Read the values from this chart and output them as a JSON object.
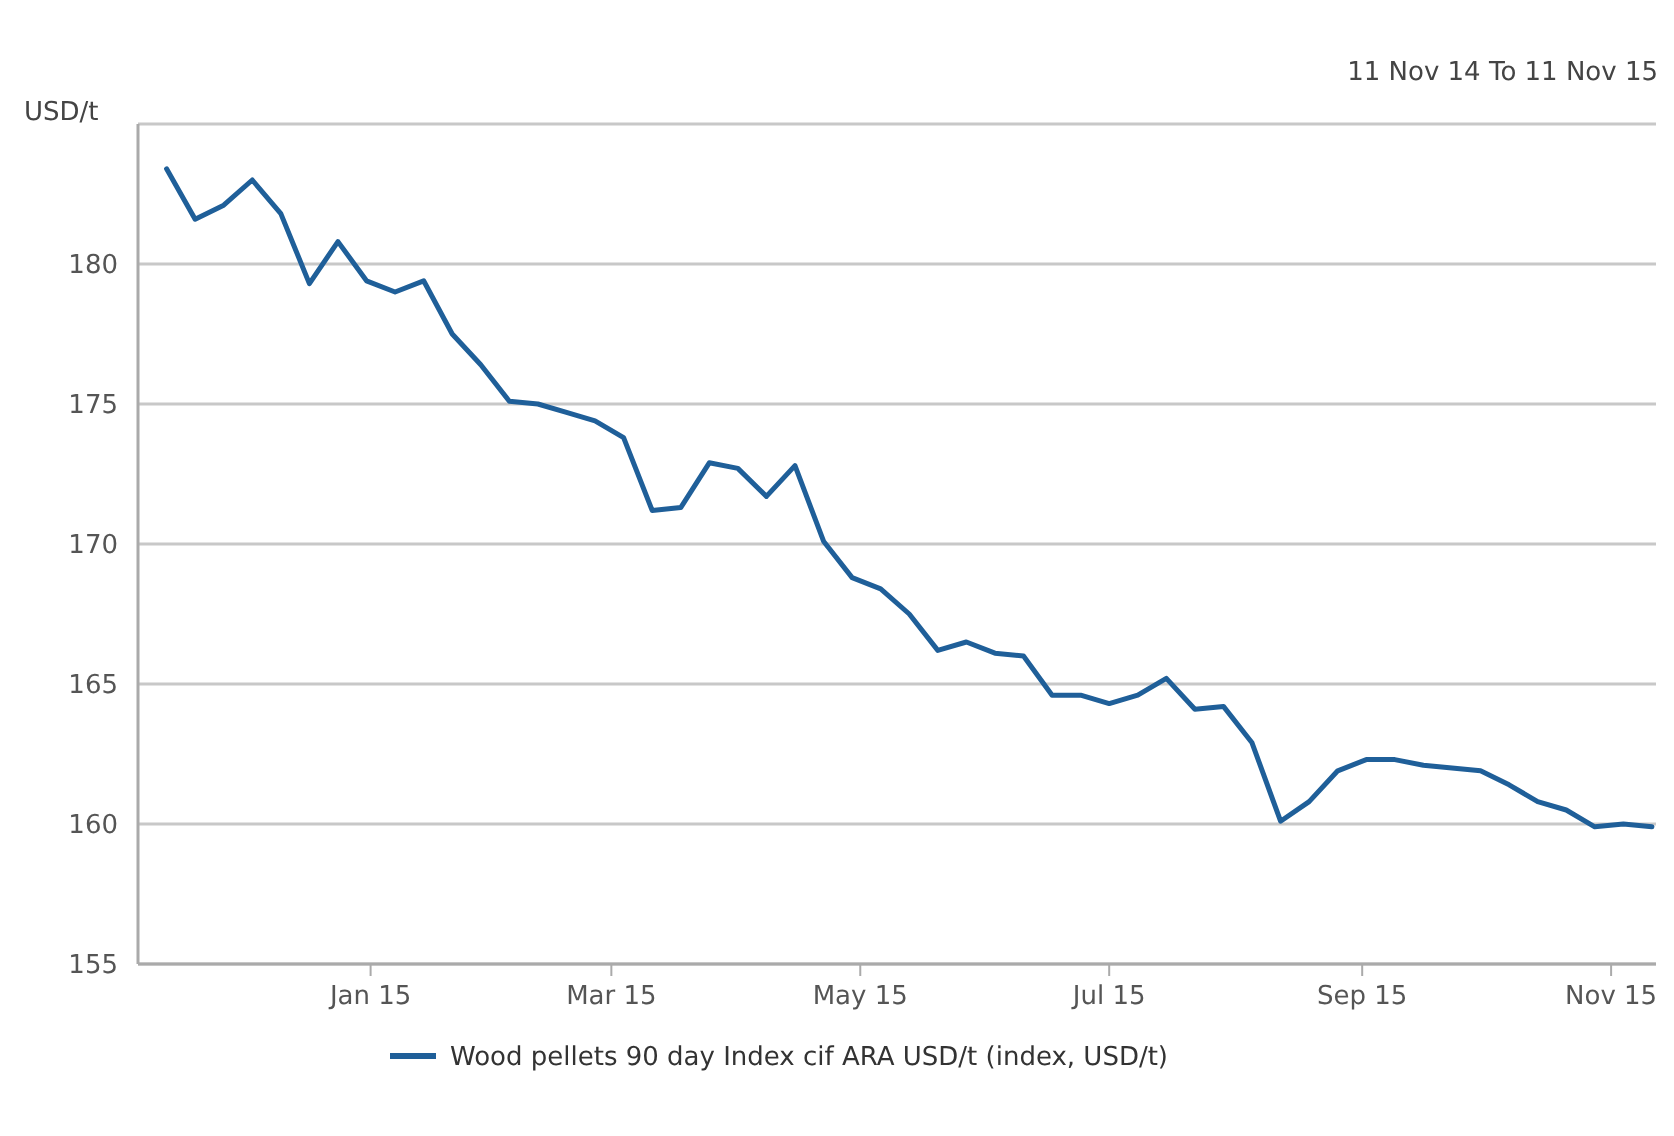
{
  "chart_data": {
    "type": "line",
    "subtitle": "11 Nov 14 To 11 Nov 15",
    "ylabel": "USD/t",
    "x": [
      "2014-11-12",
      "2014-11-19",
      "2014-11-26",
      "2014-12-03",
      "2014-12-10",
      "2014-12-17",
      "2014-12-24",
      "2014-12-31",
      "2015-01-07",
      "2015-01-14",
      "2015-01-21",
      "2015-01-28",
      "2015-02-04",
      "2015-02-11",
      "2015-02-18",
      "2015-02-25",
      "2015-03-04",
      "2015-03-11",
      "2015-03-18",
      "2015-03-25",
      "2015-04-01",
      "2015-04-08",
      "2015-04-15",
      "2015-04-22",
      "2015-04-29",
      "2015-05-06",
      "2015-05-13",
      "2015-05-20",
      "2015-05-27",
      "2015-06-03",
      "2015-06-10",
      "2015-06-17",
      "2015-06-24",
      "2015-07-01",
      "2015-07-08",
      "2015-07-15",
      "2015-07-22",
      "2015-07-29",
      "2015-08-05",
      "2015-08-12",
      "2015-08-19",
      "2015-08-26",
      "2015-09-02",
      "2015-09-09",
      "2015-09-16",
      "2015-09-23",
      "2015-09-30",
      "2015-10-07",
      "2015-10-14",
      "2015-10-21",
      "2015-10-28",
      "2015-11-04",
      "2015-11-11"
    ],
    "series": [
      {
        "name": "Wood pellets 90 day Index cif ARA USD/t (index, USD/t)",
        "color": "#1f5f99",
        "values": [
          183.4,
          181.6,
          182.1,
          183.0,
          181.8,
          179.3,
          180.8,
          179.4,
          179.0,
          179.4,
          177.5,
          176.4,
          175.1,
          175.0,
          174.7,
          174.4,
          173.8,
          171.2,
          171.3,
          172.9,
          172.7,
          171.7,
          172.8,
          170.1,
          168.8,
          168.4,
          167.5,
          166.2,
          166.5,
          166.1,
          166.0,
          164.6,
          164.6,
          164.3,
          164.6,
          165.2,
          164.1,
          164.2,
          162.9,
          160.1,
          160.8,
          161.9,
          162.3,
          162.3,
          162.1,
          162.0,
          161.9,
          161.4,
          160.8,
          160.5,
          159.9,
          160.0,
          159.9
        ]
      }
    ],
    "xlim": [
      "2014-11-05",
      "2015-11-12"
    ],
    "xticks": [
      {
        "value": "2015-01-01",
        "label": "Jan 15"
      },
      {
        "value": "2015-03-01",
        "label": "Mar 15"
      },
      {
        "value": "2015-05-01",
        "label": "May 15"
      },
      {
        "value": "2015-07-01",
        "label": "Jul 15"
      },
      {
        "value": "2015-09-01",
        "label": "Sep 15"
      },
      {
        "value": "2015-11-01",
        "label": "Nov 15"
      }
    ],
    "ylim": [
      155,
      185
    ],
    "yticks": [
      155,
      160,
      165,
      170,
      175,
      180,
      {
        "value": 185,
        "label": null
      }
    ],
    "grid": "y",
    "legend": "bottom",
    "marker": "none",
    "line_style": "solid"
  }
}
